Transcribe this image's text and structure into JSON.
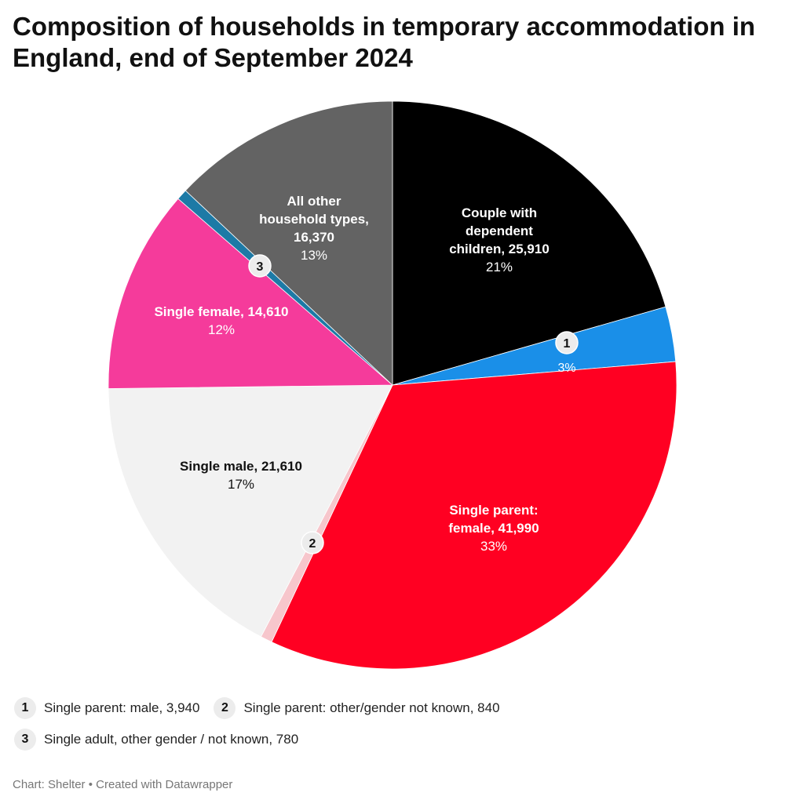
{
  "title": "Composition of households in temporary accommodation in England, end of September 2024",
  "footer": "Chart: Shelter • Created with Datawrapper",
  "chart_data": {
    "type": "pie",
    "title": "Composition of households in temporary accommodation in England, end of September 2024",
    "slices": [
      {
        "name": "Couple with dependent children",
        "value": 25910,
        "percent": "21%",
        "color": "#000000",
        "label": "Couple with dependent children, 25,910",
        "text_color": "#ffffff"
      },
      {
        "name": "Single parent: male",
        "value": 3940,
        "percent": "3%",
        "color": "#1a8fe8",
        "marker": "1"
      },
      {
        "name": "Single parent: female",
        "value": 41990,
        "percent": "33%",
        "color": "#ff0022",
        "label": "Single parent: female, 41,990",
        "text_color": "#ffffff"
      },
      {
        "name": "Single parent: other/gender not known",
        "value": 840,
        "color": "#f7c6cc",
        "marker": "2"
      },
      {
        "name": "Single male",
        "value": 21610,
        "percent": "17%",
        "color": "#f2f2f2",
        "label": "Single male, 21,610",
        "text_color": "#111111"
      },
      {
        "name": "Single female",
        "value": 14610,
        "percent": "12%",
        "color": "#f53b9b",
        "label": "Single female, 14,610",
        "text_color": "#ffffff"
      },
      {
        "name": "Single adult, other gender / not known",
        "value": 780,
        "color": "#1d7aa6",
        "marker": "3"
      },
      {
        "name": "All other household types",
        "value": 16370,
        "percent": "13%",
        "color": "#636363",
        "label": "All other household types, 16,370",
        "text_color": "#ffffff"
      }
    ]
  },
  "legend": [
    [
      {
        "num": "1",
        "text": "Single parent: male, 3,940"
      },
      {
        "num": "2",
        "text": "Single parent: other/gender not known, 840"
      }
    ],
    [
      {
        "num": "3",
        "text": "Single adult, other gender / not known, 780"
      }
    ]
  ]
}
